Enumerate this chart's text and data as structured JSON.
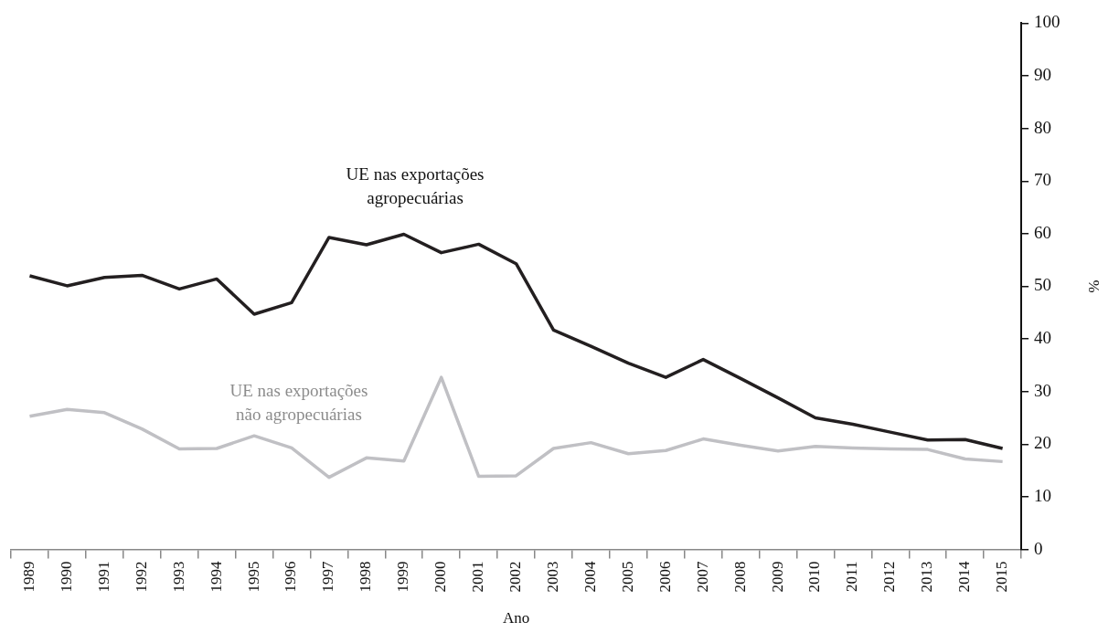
{
  "chart_data": {
    "type": "line",
    "xlabel": "Ano",
    "ylabel": "%",
    "categories": [
      "1989",
      "1990",
      "1991",
      "1992",
      "1993",
      "1994",
      "1995",
      "1996",
      "1997",
      "1998",
      "1999",
      "2000",
      "2001",
      "2002",
      "2003",
      "2004",
      "2005",
      "2006",
      "2007",
      "2008",
      "2009",
      "2010",
      "2011",
      "2012",
      "2013",
      "2014",
      "2015"
    ],
    "series": [
      {
        "name": "UE nas exportações agropecuárias",
        "color": "#231f20",
        "values": [
          52.0,
          50.1,
          51.7,
          52.1,
          49.5,
          51.4,
          44.7,
          46.9,
          59.3,
          57.9,
          59.9,
          56.4,
          58.0,
          54.3,
          41.7,
          38.6,
          35.4,
          32.7,
          36.1,
          32.5,
          28.8,
          25.0,
          23.8,
          22.3,
          20.8,
          20.9,
          19.2
        ]
      },
      {
        "name": "UE nas exportações não agropecuárias",
        "color": "#c0c0c4",
        "values": [
          25.3,
          26.6,
          26.0,
          22.9,
          19.1,
          19.2,
          21.6,
          19.3,
          13.7,
          17.4,
          16.8,
          32.7,
          13.9,
          14.0,
          19.2,
          20.3,
          18.2,
          18.8,
          21.0,
          19.8,
          18.7,
          19.6,
          19.3,
          19.1,
          19.0,
          17.2,
          16.7
        ]
      }
    ],
    "ylim": [
      0,
      100
    ],
    "yticks": [
      0,
      10,
      20,
      30,
      40,
      50,
      60,
      70,
      80,
      90,
      100
    ],
    "grid": false,
    "legend": false,
    "marker": "none",
    "line_style": "solid"
  }
}
